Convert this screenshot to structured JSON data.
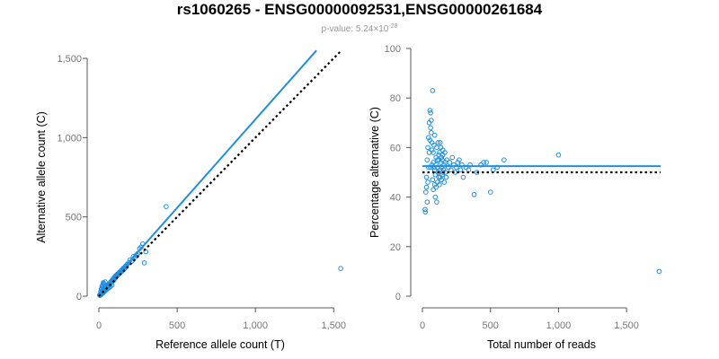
{
  "figure": {
    "title": "rs1060265 - ENSG00000092531,ENSG00000261684",
    "subtitle_prefix": "p-value: 5.24×10",
    "subtitle_exponent": "-28",
    "point_color": "#1f8fe0",
    "reference_line_color": "#000000"
  },
  "chart_data": [
    {
      "type": "scatter",
      "title": "",
      "xlabel": "Reference allele count (T)",
      "ylabel": "Alternative allele count (C)",
      "xlim": [
        0,
        1550
      ],
      "ylim": [
        0,
        1500
      ],
      "x_ticks": [
        0,
        500,
        1000,
        1500
      ],
      "x_tick_labels": [
        "0",
        "500",
        "1,000",
        "1,500"
      ],
      "y_ticks": [
        0,
        500,
        1000,
        1500
      ],
      "y_tick_labels": [
        "0",
        "500",
        "1,000",
        "1,500"
      ],
      "fit_line": {
        "x": [
          0,
          1390
        ],
        "y": [
          0,
          1550
        ]
      },
      "reference_line": {
        "x": [
          0,
          1550
        ],
        "y": [
          0,
          1550
        ]
      },
      "points": [
        [
          10,
          12
        ],
        [
          14,
          18
        ],
        [
          18,
          20
        ],
        [
          20,
          28
        ],
        [
          22,
          25
        ],
        [
          25,
          30
        ],
        [
          28,
          22
        ],
        [
          30,
          35
        ],
        [
          32,
          40
        ],
        [
          35,
          38
        ],
        [
          38,
          45
        ],
        [
          40,
          50
        ],
        [
          42,
          42
        ],
        [
          45,
          55
        ],
        [
          48,
          50
        ],
        [
          50,
          60
        ],
        [
          52,
          58
        ],
        [
          55,
          65
        ],
        [
          58,
          70
        ],
        [
          60,
          62
        ],
        [
          62,
          72
        ],
        [
          65,
          75
        ],
        [
          68,
          70
        ],
        [
          70,
          80
        ],
        [
          72,
          85
        ],
        [
          75,
          82
        ],
        [
          78,
          90
        ],
        [
          80,
          95
        ],
        [
          82,
          88
        ],
        [
          85,
          100
        ],
        [
          88,
          95
        ],
        [
          90,
          105
        ],
        [
          92,
          110
        ],
        [
          95,
          100
        ],
        [
          98,
          115
        ],
        [
          100,
          120
        ],
        [
          102,
          110
        ],
        [
          105,
          125
        ],
        [
          108,
          118
        ],
        [
          110,
          130
        ],
        [
          112,
          128
        ],
        [
          115,
          135
        ],
        [
          118,
          130
        ],
        [
          120,
          140
        ],
        [
          125,
          138
        ],
        [
          128,
          145
        ],
        [
          130,
          150
        ],
        [
          135,
          148
        ],
        [
          140,
          160
        ],
        [
          145,
          155
        ],
        [
          150,
          170
        ],
        [
          155,
          165
        ],
        [
          160,
          180
        ],
        [
          165,
          175
        ],
        [
          170,
          190
        ],
        [
          175,
          185
        ],
        [
          180,
          200
        ],
        [
          190,
          210
        ],
        [
          200,
          230
        ],
        [
          210,
          220
        ],
        [
          220,
          250
        ],
        [
          230,
          245
        ],
        [
          240,
          260
        ],
        [
          250,
          270
        ],
        [
          260,
          300
        ],
        [
          270,
          310
        ],
        [
          280,
          330
        ],
        [
          290,
          210
        ],
        [
          300,
          280
        ],
        [
          430,
          565
        ],
        [
          15,
          45
        ],
        [
          20,
          60
        ],
        [
          25,
          70
        ],
        [
          30,
          80
        ],
        [
          35,
          75
        ],
        [
          40,
          90
        ],
        [
          12,
          30
        ],
        [
          18,
          50
        ],
        [
          22,
          65
        ],
        [
          28,
          85
        ],
        [
          8,
          10
        ],
        [
          12,
          8
        ],
        [
          16,
          12
        ],
        [
          24,
          18
        ],
        [
          34,
          28
        ],
        [
          44,
          36
        ],
        [
          54,
          46
        ],
        [
          64,
          52
        ],
        [
          74,
          60
        ],
        [
          84,
          70
        ],
        [
          5,
          6
        ],
        [
          6,
          5
        ],
        [
          7,
          9
        ],
        [
          9,
          7
        ],
        [
          11,
          14
        ],
        [
          13,
          11
        ],
        [
          17,
          22
        ],
        [
          19,
          16
        ],
        [
          23,
          30
        ],
        [
          27,
          33
        ],
        [
          1545,
          175
        ]
      ]
    },
    {
      "type": "scatter",
      "title": "",
      "xlabel": "Total number of reads",
      "ylabel": "Percentage alternative (C)",
      "xlim": [
        0,
        1750
      ],
      "ylim": [
        0,
        100
      ],
      "x_ticks": [
        0,
        500,
        1000,
        1500
      ],
      "x_tick_labels": [
        "0",
        "500",
        "1,000",
        "1,500"
      ],
      "y_ticks": [
        0,
        20,
        40,
        60,
        80,
        100
      ],
      "y_tick_labels": [
        "0",
        "20",
        "40",
        "60",
        "80",
        "100"
      ],
      "fit_line": {
        "x": [
          0,
          1750
        ],
        "y": [
          52.5,
          52.5
        ]
      },
      "reference_line": {
        "x": [
          0,
          1750
        ],
        "y": [
          50,
          50
        ]
      },
      "points": [
        [
          20,
          35
        ],
        [
          22,
          34
        ],
        [
          25,
          42
        ],
        [
          30,
          48
        ],
        [
          35,
          55
        ],
        [
          40,
          60
        ],
        [
          45,
          64
        ],
        [
          50,
          70
        ],
        [
          55,
          75
        ],
        [
          60,
          74
        ],
        [
          65,
          66
        ],
        [
          70,
          62
        ],
        [
          75,
          83
        ],
        [
          80,
          58
        ],
        [
          85,
          52
        ],
        [
          90,
          45
        ],
        [
          95,
          40
        ],
        [
          100,
          56
        ],
        [
          105,
          60
        ],
        [
          110,
          55
        ],
        [
          115,
          50
        ],
        [
          120,
          48
        ],
        [
          125,
          58
        ],
        [
          130,
          62
        ],
        [
          135,
          54
        ],
        [
          140,
          52
        ],
        [
          145,
          49
        ],
        [
          150,
          57
        ],
        [
          160,
          53
        ],
        [
          170,
          50
        ],
        [
          180,
          55
        ],
        [
          190,
          52
        ],
        [
          200,
          54
        ],
        [
          210,
          51
        ],
        [
          220,
          56
        ],
        [
          230,
          53
        ],
        [
          240,
          50
        ],
        [
          250,
          52
        ],
        [
          260,
          54
        ],
        [
          270,
          55
        ],
        [
          280,
          51
        ],
        [
          290,
          53
        ],
        [
          300,
          48
        ],
        [
          320,
          52
        ],
        [
          340,
          51
        ],
        [
          350,
          53
        ],
        [
          380,
          41
        ],
        [
          400,
          50
        ],
        [
          430,
          53
        ],
        [
          450,
          54
        ],
        [
          470,
          54
        ],
        [
          500,
          42
        ],
        [
          520,
          51
        ],
        [
          550,
          52
        ],
        [
          600,
          55
        ],
        [
          1000,
          57
        ],
        [
          1740,
          10
        ],
        [
          30,
          44
        ],
        [
          35,
          38
        ],
        [
          40,
          46
        ],
        [
          45,
          52
        ],
        [
          50,
          58
        ],
        [
          55,
          63
        ],
        [
          60,
          68
        ],
        [
          65,
          71
        ],
        [
          70,
          59
        ],
        [
          75,
          47
        ],
        [
          80,
          43
        ],
        [
          85,
          61
        ],
        [
          90,
          65
        ],
        [
          95,
          49
        ],
        [
          100,
          44
        ],
        [
          105,
          38
        ],
        [
          110,
          46
        ],
        [
          115,
          62
        ],
        [
          120,
          57
        ],
        [
          125,
          45
        ],
        [
          130,
          48
        ],
        [
          135,
          60
        ],
        [
          140,
          47
        ],
        [
          145,
          55
        ],
        [
          150,
          59
        ],
        [
          155,
          51
        ],
        [
          160,
          46
        ],
        [
          165,
          58
        ],
        [
          170,
          54
        ],
        [
          175,
          48
        ],
        [
          60,
          52
        ],
        [
          70,
          53
        ],
        [
          80,
          54
        ],
        [
          90,
          51
        ],
        [
          100,
          53
        ],
        [
          110,
          52
        ],
        [
          120,
          55
        ],
        [
          130,
          51
        ],
        [
          140,
          56
        ],
        [
          150,
          50
        ]
      ]
    }
  ]
}
